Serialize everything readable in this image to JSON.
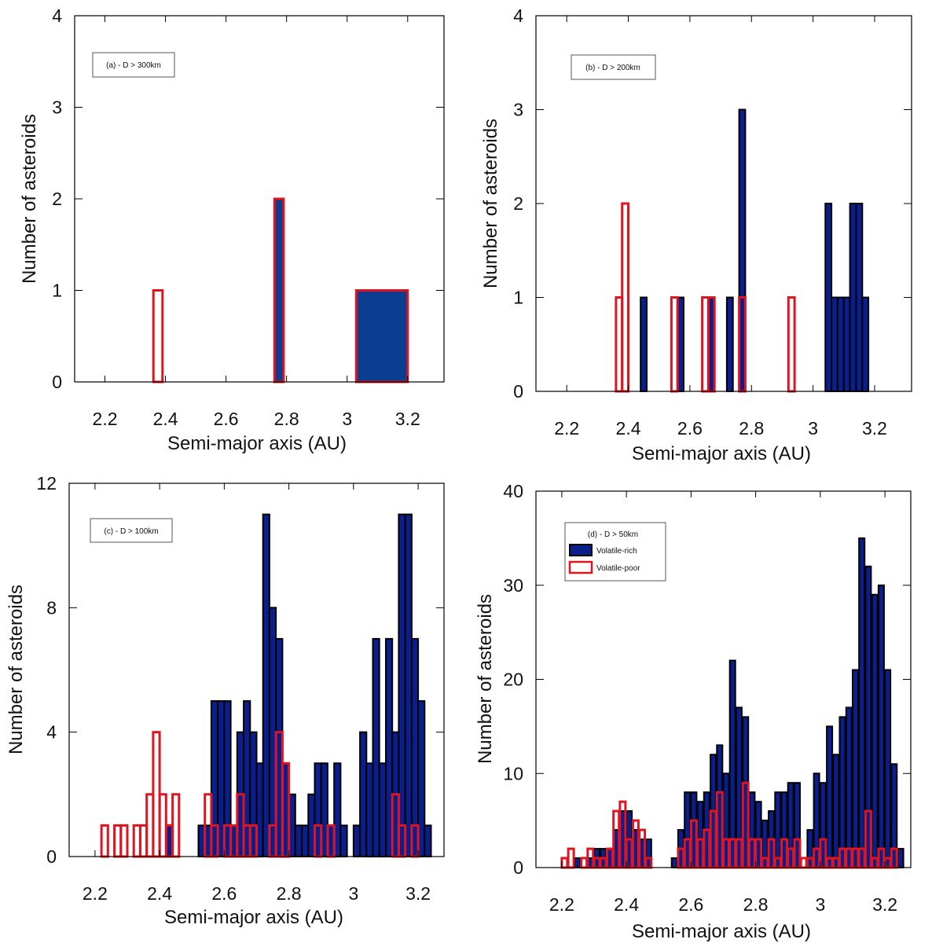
{
  "colors": {
    "volatile_rich_fill": "#0a1e8c",
    "volatile_rich_fill_a": "#0b3d91",
    "volatile_rich_edge": "#000000",
    "volatile_poor_edge": "#e0141e"
  },
  "chart_data": [
    {
      "type": "bar",
      "title": "(a) - D > 300km",
      "xlabel": "Semi-major axis (AU)",
      "ylabel": "Number of asteroids",
      "xlim": [
        2.1,
        3.32
      ],
      "ylim": [
        0,
        4
      ],
      "xticks": [
        "2.2",
        "2.4",
        "2.6",
        "2.8",
        "3",
        "3.2"
      ],
      "yticks": [
        "0",
        "1",
        "2",
        "3",
        "4"
      ],
      "series": [
        {
          "name": "Volatile-rich",
          "bars": [
            [
              2.76,
              2.79,
              2
            ],
            [
              3.03,
              3.2,
              1
            ]
          ]
        },
        {
          "name": "Volatile-poor",
          "bars": [
            [
              2.36,
              2.39,
              1
            ],
            [
              2.76,
              2.79,
              2
            ],
            [
              3.03,
              3.2,
              1
            ]
          ]
        }
      ]
    },
    {
      "type": "bar",
      "title": "(b) - D > 200km",
      "xlabel": "Semi-major axis (AU)",
      "ylabel": "Number of asteroids",
      "xlim": [
        2.1,
        3.32
      ],
      "ylim": [
        0,
        4
      ],
      "xticks": [
        "2.2",
        "2.4",
        "2.6",
        "2.8",
        "3",
        "3.2"
      ],
      "yticks": [
        "0",
        "1",
        "2",
        "3",
        "4"
      ],
      "series": [
        {
          "name": "Volatile-rich",
          "binwidth": 0.02,
          "bars": [
            [
              2.44,
              1
            ],
            [
              2.56,
              1
            ],
            [
              2.66,
              1
            ],
            [
              2.72,
              1
            ],
            [
              2.76,
              3
            ],
            [
              3.04,
              2
            ],
            [
              3.06,
              1
            ],
            [
              3.08,
              1
            ],
            [
              3.1,
              1
            ],
            [
              3.12,
              2
            ],
            [
              3.14,
              2
            ],
            [
              3.16,
              1
            ]
          ]
        },
        {
          "name": "Volatile-poor",
          "binwidth": 0.02,
          "bars": [
            [
              2.36,
              1
            ],
            [
              2.38,
              2
            ],
            [
              2.54,
              1
            ],
            [
              2.64,
              1
            ],
            [
              2.66,
              1
            ],
            [
              2.76,
              1
            ],
            [
              2.92,
              1
            ]
          ]
        }
      ]
    },
    {
      "type": "bar",
      "title": "(c) - D > 100km",
      "xlabel": "Semi-major axis (AU)",
      "ylabel": "Number of asteroids",
      "xlim": [
        2.12,
        3.28
      ],
      "ylim": [
        0,
        12
      ],
      "xticks": [
        "2.2",
        "2.4",
        "2.6",
        "2.8",
        "3",
        "3.2"
      ],
      "yticks": [
        "0",
        "4",
        "8",
        "12"
      ],
      "series": [
        {
          "name": "Volatile-rich",
          "binwidth": 0.02,
          "bars": [
            [
              2.42,
              1
            ],
            [
              2.52,
              1
            ],
            [
              2.54,
              1
            ],
            [
              2.56,
              5
            ],
            [
              2.58,
              5
            ],
            [
              2.6,
              5
            ],
            [
              2.62,
              1
            ],
            [
              2.64,
              4
            ],
            [
              2.66,
              5
            ],
            [
              2.68,
              4
            ],
            [
              2.7,
              3
            ],
            [
              2.72,
              11
            ],
            [
              2.74,
              8
            ],
            [
              2.76,
              7
            ],
            [
              2.78,
              3
            ],
            [
              2.8,
              2
            ],
            [
              2.82,
              1
            ],
            [
              2.84,
              1
            ],
            [
              2.86,
              2
            ],
            [
              2.88,
              3
            ],
            [
              2.9,
              3
            ],
            [
              2.92,
              1
            ],
            [
              2.94,
              3
            ],
            [
              2.96,
              1
            ],
            [
              3.0,
              1
            ],
            [
              3.02,
              4
            ],
            [
              3.04,
              3
            ],
            [
              3.06,
              7
            ],
            [
              3.08,
              3
            ],
            [
              3.1,
              7
            ],
            [
              3.12,
              4
            ],
            [
              3.14,
              11
            ],
            [
              3.16,
              11
            ],
            [
              3.18,
              7
            ],
            [
              3.2,
              5
            ],
            [
              3.22,
              1
            ]
          ]
        },
        {
          "name": "Volatile-poor",
          "binwidth": 0.02,
          "bars": [
            [
              2.22,
              1
            ],
            [
              2.26,
              1
            ],
            [
              2.28,
              1
            ],
            [
              2.32,
              1
            ],
            [
              2.34,
              1
            ],
            [
              2.36,
              2
            ],
            [
              2.38,
              4
            ],
            [
              2.4,
              2
            ],
            [
              2.42,
              1
            ],
            [
              2.44,
              2
            ],
            [
              2.54,
              2
            ],
            [
              2.56,
              1
            ],
            [
              2.6,
              1
            ],
            [
              2.62,
              1
            ],
            [
              2.64,
              2
            ],
            [
              2.66,
              1
            ],
            [
              2.68,
              1
            ],
            [
              2.74,
              1
            ],
            [
              2.76,
              4
            ],
            [
              2.78,
              3
            ],
            [
              2.88,
              1
            ],
            [
              2.92,
              1
            ],
            [
              3.12,
              2
            ],
            [
              3.14,
              1
            ],
            [
              3.18,
              1
            ]
          ]
        }
      ]
    },
    {
      "type": "bar",
      "title": "(d) - D > 50km",
      "xlabel": "Semi-major axis (AU)",
      "ylabel": "Number of asteroids",
      "xlim": [
        2.12,
        3.28
      ],
      "ylim": [
        0,
        40
      ],
      "xticks": [
        "2.2",
        "2.4",
        "2.6",
        "2.8",
        "3",
        "3.2"
      ],
      "yticks": [
        "0",
        "10",
        "20",
        "30",
        "40"
      ],
      "legend": [
        "Volatile-rich",
        "Volatile-poor"
      ],
      "series": [
        {
          "name": "Volatile-rich",
          "binwidth": 0.017,
          "bars": [
            [
              2.24,
              1
            ],
            [
              2.28,
              1
            ],
            [
              2.3,
              2
            ],
            [
              2.32,
              2
            ],
            [
              2.34,
              2
            ],
            [
              2.36,
              4
            ],
            [
              2.38,
              6
            ],
            [
              2.4,
              6
            ],
            [
              2.42,
              4
            ],
            [
              2.44,
              3
            ],
            [
              2.46,
              3
            ],
            [
              2.54,
              1
            ],
            [
              2.56,
              4
            ],
            [
              2.58,
              8
            ],
            [
              2.6,
              8
            ],
            [
              2.62,
              7
            ],
            [
              2.64,
              8
            ],
            [
              2.66,
              12
            ],
            [
              2.68,
              13
            ],
            [
              2.7,
              10
            ],
            [
              2.72,
              22
            ],
            [
              2.74,
              17
            ],
            [
              2.76,
              16
            ],
            [
              2.78,
              8
            ],
            [
              2.8,
              7
            ],
            [
              2.82,
              5
            ],
            [
              2.84,
              6
            ],
            [
              2.86,
              8
            ],
            [
              2.88,
              8
            ],
            [
              2.9,
              9
            ],
            [
              2.92,
              9
            ],
            [
              2.96,
              4
            ],
            [
              2.98,
              10
            ],
            [
              3.0,
              9
            ],
            [
              3.02,
              15
            ],
            [
              3.04,
              12
            ],
            [
              3.06,
              16
            ],
            [
              3.08,
              17
            ],
            [
              3.1,
              21
            ],
            [
              3.12,
              35
            ],
            [
              3.14,
              32
            ],
            [
              3.16,
              29
            ],
            [
              3.18,
              30
            ],
            [
              3.2,
              21
            ],
            [
              3.22,
              11
            ],
            [
              3.24,
              2
            ]
          ]
        },
        {
          "name": "Volatile-poor",
          "binwidth": 0.017,
          "bars": [
            [
              2.2,
              1
            ],
            [
              2.22,
              2
            ],
            [
              2.26,
              1
            ],
            [
              2.28,
              2
            ],
            [
              2.3,
              1
            ],
            [
              2.32,
              1
            ],
            [
              2.34,
              2
            ],
            [
              2.36,
              6
            ],
            [
              2.38,
              7
            ],
            [
              2.4,
              3
            ],
            [
              2.42,
              5
            ],
            [
              2.44,
              4
            ],
            [
              2.46,
              1
            ],
            [
              2.56,
              2
            ],
            [
              2.58,
              3
            ],
            [
              2.6,
              5
            ],
            [
              2.62,
              3
            ],
            [
              2.64,
              4
            ],
            [
              2.66,
              6
            ],
            [
              2.68,
              8
            ],
            [
              2.7,
              3
            ],
            [
              2.72,
              3
            ],
            [
              2.74,
              3
            ],
            [
              2.76,
              9
            ],
            [
              2.78,
              3
            ],
            [
              2.8,
              3
            ],
            [
              2.82,
              1
            ],
            [
              2.84,
              3
            ],
            [
              2.86,
              1
            ],
            [
              2.88,
              3
            ],
            [
              2.9,
              2
            ],
            [
              2.92,
              3
            ],
            [
              2.94,
              1
            ],
            [
              2.96,
              1
            ],
            [
              2.98,
              2
            ],
            [
              3.0,
              3
            ],
            [
              3.02,
              1
            ],
            [
              3.04,
              1
            ],
            [
              3.06,
              2
            ],
            [
              3.08,
              2
            ],
            [
              3.1,
              2
            ],
            [
              3.12,
              2
            ],
            [
              3.14,
              6
            ],
            [
              3.16,
              1
            ],
            [
              3.18,
              2
            ],
            [
              3.2,
              1
            ],
            [
              3.22,
              2
            ]
          ]
        }
      ]
    }
  ]
}
